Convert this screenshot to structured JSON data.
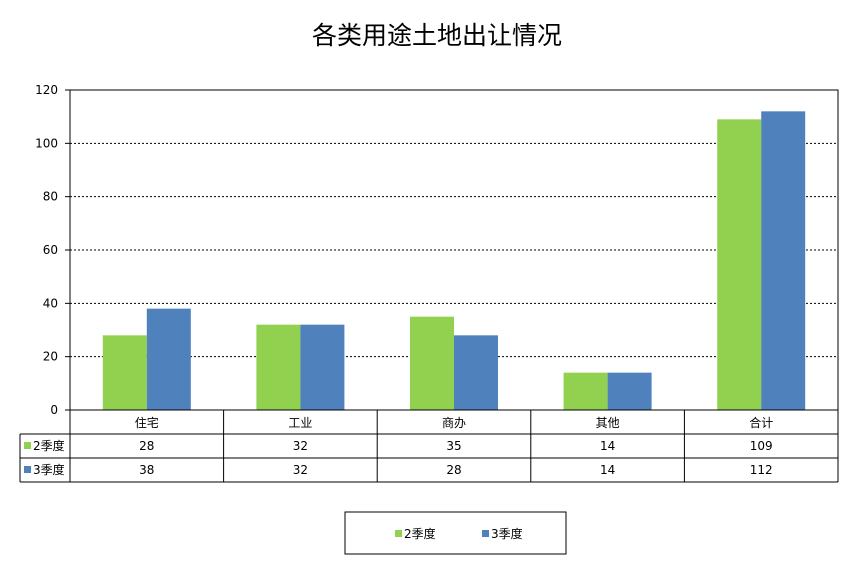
{
  "chart_data": {
    "type": "bar",
    "title": "各类用途土地出让情况",
    "categories": [
      "住宅",
      "工业",
      "商办",
      "其他",
      "合计"
    ],
    "series": [
      {
        "name": "2季度",
        "values": [
          28,
          32,
          35,
          14,
          109
        ],
        "color": "#92D050"
      },
      {
        "name": "3季度",
        "values": [
          38,
          32,
          28,
          14,
          112
        ],
        "color": "#4F81BD"
      }
    ],
    "ylim": [
      0,
      120
    ],
    "yticks": [
      0,
      20,
      40,
      60,
      80,
      100,
      120
    ],
    "grid": true,
    "legend_position": "bottom",
    "data_table": true
  }
}
